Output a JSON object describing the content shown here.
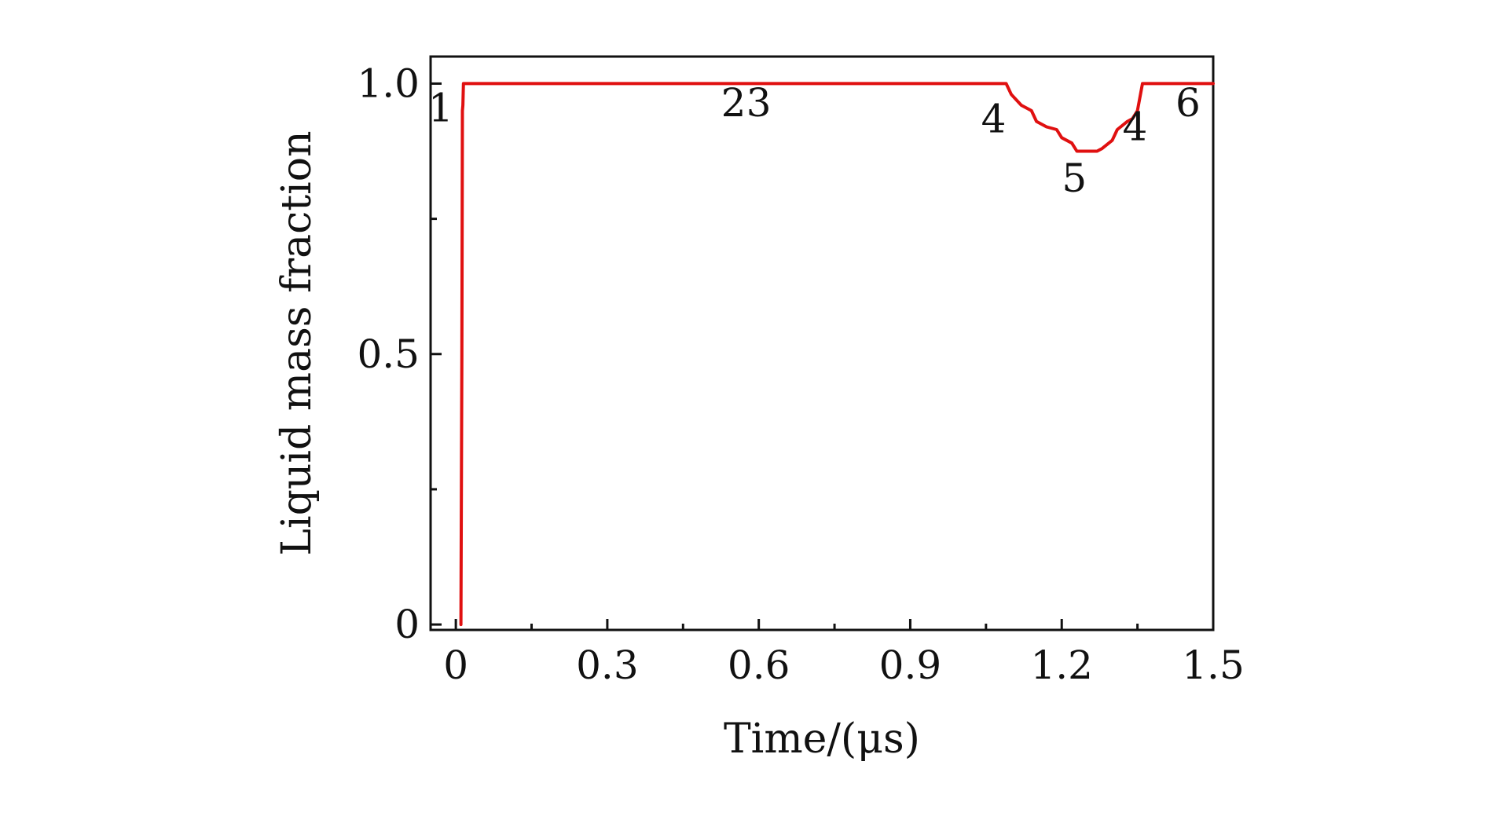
{
  "chart_data": {
    "type": "line",
    "title": "",
    "xlabel": "Time/(μs)",
    "ylabel": "Liquid mass fraction",
    "xlim": [
      -0.05,
      1.5
    ],
    "ylim": [
      -0.01,
      1.05
    ],
    "x_ticks": [
      0,
      0.3,
      0.6,
      0.9,
      1.2,
      1.5
    ],
    "x_tick_labels": [
      "0",
      "0.3",
      "0.6",
      "0.9",
      "1.2",
      "1.5"
    ],
    "x_minor_ticks": [
      0.15,
      0.45,
      0.75,
      1.05,
      1.35
    ],
    "y_ticks": [
      0,
      0.5,
      1.0
    ],
    "y_tick_labels": [
      "0",
      "0.5",
      "1.0"
    ],
    "y_minor_ticks": [
      0.25,
      0.75
    ],
    "grid": false,
    "legend": "none",
    "series": [
      {
        "color": "#e01010",
        "x": [
          0.01,
          0.012,
          0.013,
          0.014,
          0.015,
          0.02,
          0.05,
          0.3,
          0.6,
          0.9,
          1.09,
          1.1,
          1.12,
          1.14,
          1.15,
          1.17,
          1.19,
          1.2,
          1.22,
          1.23,
          1.25,
          1.27,
          1.28,
          1.3,
          1.31,
          1.33,
          1.34,
          1.35,
          1.36,
          1.4,
          1.45,
          1.5
        ],
        "y": [
          0.0,
          0.5,
          0.95,
          0.96,
          1.0,
          1.0,
          1.0,
          1.0,
          1.0,
          1.0,
          1.0,
          0.98,
          0.96,
          0.95,
          0.93,
          0.92,
          0.915,
          0.9,
          0.89,
          0.875,
          0.875,
          0.875,
          0.88,
          0.895,
          0.915,
          0.93,
          0.935,
          0.95,
          1.0,
          1.0,
          1.0,
          1.0
        ]
      }
    ],
    "annotations": [
      {
        "text": "1",
        "x": -0.03,
        "y": 0.93
      },
      {
        "text": "2",
        "x": 0.55,
        "y": 0.94
      },
      {
        "text": "3",
        "x": 0.6,
        "y": 0.94
      },
      {
        "text": "4",
        "x": 1.065,
        "y": 0.91
      },
      {
        "text": "5",
        "x": 1.225,
        "y": 0.8
      },
      {
        "text": "4",
        "x": 1.345,
        "y": 0.895
      },
      {
        "text": "6",
        "x": 1.45,
        "y": 0.94
      }
    ]
  }
}
